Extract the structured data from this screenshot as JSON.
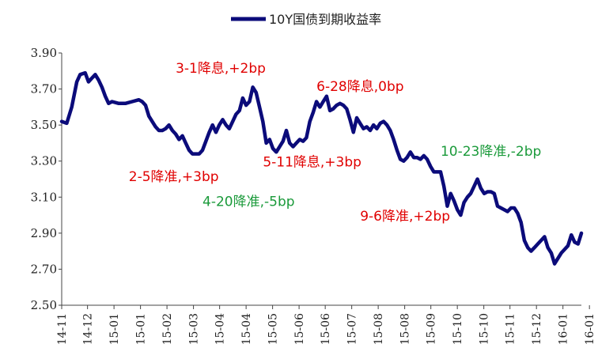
{
  "chart_data": {
    "type": "line",
    "legend": {
      "placement": "top-center",
      "entries": [
        "10Y国债到期收益率"
      ]
    },
    "series": [
      {
        "name": "10Y国债到期收益率",
        "color": "#0b0b7a",
        "points": [
          [
            0,
            3.52
          ],
          [
            1.5,
            3.51
          ],
          [
            3,
            3.6
          ],
          [
            4.5,
            3.74
          ],
          [
            5.5,
            3.78
          ],
          [
            7,
            3.79
          ],
          [
            8,
            3.74
          ],
          [
            9,
            3.76
          ],
          [
            10,
            3.78
          ],
          [
            11,
            3.75
          ],
          [
            12,
            3.71
          ],
          [
            13,
            3.66
          ],
          [
            14,
            3.62
          ],
          [
            15,
            3.63
          ],
          [
            17,
            3.62
          ],
          [
            19,
            3.62
          ],
          [
            21,
            3.63
          ],
          [
            23,
            3.64
          ],
          [
            24,
            3.63
          ],
          [
            25,
            3.61
          ],
          [
            26,
            3.55
          ],
          [
            27,
            3.52
          ],
          [
            28,
            3.49
          ],
          [
            29,
            3.47
          ],
          [
            30,
            3.47
          ],
          [
            31,
            3.48
          ],
          [
            32,
            3.5
          ],
          [
            33,
            3.47
          ],
          [
            34,
            3.45
          ],
          [
            35,
            3.42
          ],
          [
            36,
            3.44
          ],
          [
            37,
            3.4
          ],
          [
            38,
            3.36
          ],
          [
            39,
            3.34
          ],
          [
            40,
            3.34
          ],
          [
            41,
            3.34
          ],
          [
            42,
            3.36
          ],
          [
            43,
            3.41
          ],
          [
            44,
            3.46
          ],
          [
            45,
            3.5
          ],
          [
            46,
            3.46
          ],
          [
            47,
            3.5
          ],
          [
            48,
            3.53
          ],
          [
            49,
            3.5
          ],
          [
            50,
            3.48
          ],
          [
            51,
            3.52
          ],
          [
            52,
            3.56
          ],
          [
            53,
            3.58
          ],
          [
            54,
            3.65
          ],
          [
            55,
            3.61
          ],
          [
            56,
            3.63
          ],
          [
            57,
            3.71
          ],
          [
            58,
            3.68
          ],
          [
            59,
            3.6
          ],
          [
            60,
            3.52
          ],
          [
            61,
            3.4
          ],
          [
            62,
            3.42
          ],
          [
            63,
            3.37
          ],
          [
            64,
            3.35
          ],
          [
            65,
            3.38
          ],
          [
            66,
            3.41
          ],
          [
            67,
            3.47
          ],
          [
            68,
            3.4
          ],
          [
            69,
            3.38
          ],
          [
            70,
            3.4
          ],
          [
            71,
            3.42
          ],
          [
            72,
            3.41
          ],
          [
            73,
            3.43
          ],
          [
            74,
            3.52
          ],
          [
            75,
            3.57
          ],
          [
            76,
            3.63
          ],
          [
            77,
            3.6
          ],
          [
            78,
            3.63
          ],
          [
            79,
            3.66
          ],
          [
            80,
            3.58
          ],
          [
            81,
            3.59
          ],
          [
            82,
            3.61
          ],
          [
            83,
            3.62
          ],
          [
            84,
            3.61
          ],
          [
            85,
            3.59
          ],
          [
            86,
            3.53
          ],
          [
            87,
            3.46
          ],
          [
            88,
            3.54
          ],
          [
            89,
            3.51
          ],
          [
            90,
            3.48
          ],
          [
            91,
            3.49
          ],
          [
            92,
            3.47
          ],
          [
            93,
            3.5
          ],
          [
            94,
            3.48
          ],
          [
            95,
            3.51
          ],
          [
            96,
            3.52
          ],
          [
            97,
            3.5
          ],
          [
            98,
            3.47
          ],
          [
            99,
            3.42
          ],
          [
            100,
            3.36
          ],
          [
            101,
            3.31
          ],
          [
            102,
            3.3
          ],
          [
            103,
            3.32
          ],
          [
            104,
            3.35
          ],
          [
            105,
            3.32
          ],
          [
            106,
            3.32
          ],
          [
            107,
            3.31
          ],
          [
            108,
            3.33
          ],
          [
            109,
            3.31
          ],
          [
            110,
            3.27
          ],
          [
            111,
            3.24
          ],
          [
            112,
            3.24
          ],
          [
            113,
            3.24
          ],
          [
            114,
            3.16
          ],
          [
            115,
            3.05
          ],
          [
            116,
            3.12
          ],
          [
            117,
            3.08
          ],
          [
            118,
            3.03
          ],
          [
            119,
            3.0
          ],
          [
            120,
            3.07
          ],
          [
            121,
            3.1
          ],
          [
            122,
            3.12
          ],
          [
            123,
            3.16
          ],
          [
            124,
            3.2
          ],
          [
            125,
            3.15
          ],
          [
            126,
            3.12
          ],
          [
            127,
            3.13
          ],
          [
            128,
            3.13
          ],
          [
            129,
            3.12
          ],
          [
            130,
            3.05
          ],
          [
            131,
            3.04
          ],
          [
            132,
            3.03
          ],
          [
            133,
            3.02
          ],
          [
            134,
            3.04
          ],
          [
            135,
            3.04
          ],
          [
            136,
            3.01
          ],
          [
            137,
            2.96
          ],
          [
            138,
            2.86
          ],
          [
            139,
            2.82
          ],
          [
            140,
            2.8
          ],
          [
            141,
            2.82
          ],
          [
            142,
            2.84
          ],
          [
            143,
            2.86
          ],
          [
            144,
            2.88
          ],
          [
            145,
            2.82
          ],
          [
            146,
            2.79
          ],
          [
            147,
            2.73
          ],
          [
            148,
            2.76
          ],
          [
            149,
            2.79
          ],
          [
            150,
            2.81
          ],
          [
            151,
            2.83
          ],
          [
            152,
            2.89
          ],
          [
            153,
            2.85
          ],
          [
            154,
            2.84
          ],
          [
            155,
            2.9
          ]
        ]
      }
    ],
    "x_range": [
      0,
      155
    ],
    "ylim": [
      2.5,
      3.9
    ],
    "y_ticks": [
      "3.90",
      "3.70",
      "3.50",
      "3.30",
      "3.10",
      "2.90",
      "2.70",
      "2.50"
    ],
    "x_ticks": [
      {
        "label": "14-11",
        "x": 0
      },
      {
        "label": "14-12",
        "x": 7.7
      },
      {
        "label": "15-01",
        "x": 15.6
      },
      {
        "label": "15-01",
        "x": 23.5
      },
      {
        "label": "15-02",
        "x": 31.4
      },
      {
        "label": "15-03",
        "x": 39.3
      },
      {
        "label": "15-04",
        "x": 47.1
      },
      {
        "label": "15-04",
        "x": 55.0
      },
      {
        "label": "15-05",
        "x": 62.9
      },
      {
        "label": "15-06",
        "x": 70.8
      },
      {
        "label": "15-06",
        "x": 78.6
      },
      {
        "label": "15-07",
        "x": 86.5
      },
      {
        "label": "15-08",
        "x": 94.4
      },
      {
        "label": "15-08",
        "x": 102.3
      },
      {
        "label": "15-09",
        "x": 110.1
      },
      {
        "label": "15-10",
        "x": 118.0
      },
      {
        "label": "15-10",
        "x": 125.9
      },
      {
        "label": "15-11",
        "x": 133.7
      },
      {
        "label": "15-12",
        "x": 141.6
      },
      {
        "label": "16-01",
        "x": 149.5
      },
      {
        "label": "16-01",
        "x": 157.4
      }
    ],
    "grid": false,
    "annotations": [
      {
        "text": "3-1降息,+2bp",
        "color": "#e00000",
        "x": 34,
        "y": 3.79
      },
      {
        "text": "6-28降息,0bp",
        "color": "#e00000",
        "x": 76,
        "y": 3.69
      },
      {
        "text": "10-23降准,-2bp",
        "color": "#1a9a3a",
        "x": 113,
        "y": 3.33
      },
      {
        "text": "5-11降息,+3bp",
        "color": "#e00000",
        "x": 60,
        "y": 3.27
      },
      {
        "text": "2-5降准,+3bp",
        "color": "#e00000",
        "x": 20,
        "y": 3.19
      },
      {
        "text": "4-20降准,-5bp",
        "color": "#1a9a3a",
        "x": 42,
        "y": 3.05
      },
      {
        "text": "9-6降准,+2bp",
        "color": "#e00000",
        "x": 89,
        "y": 2.97
      }
    ]
  }
}
